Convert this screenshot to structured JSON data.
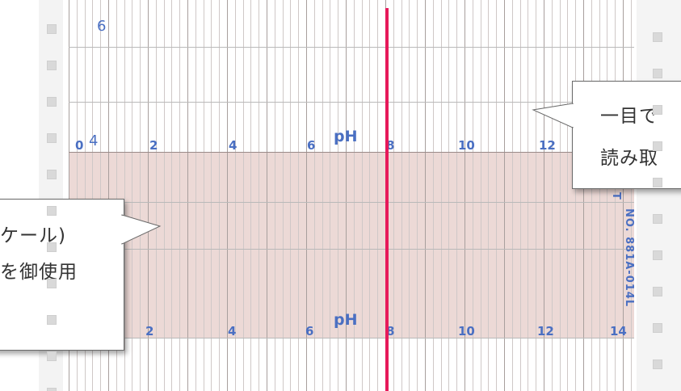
{
  "chart_paper": {
    "upper_scale": {
      "lead_digit": "0",
      "labels": [
        "4",
        "2",
        "4",
        "6",
        "8",
        "10",
        "12"
      ],
      "unit": "pH"
    },
    "lower_scale": {
      "labels": [
        "2",
        "4",
        "6",
        "8",
        "10",
        "12",
        "14"
      ],
      "unit": "pH"
    },
    "top_digit": "6",
    "part_number": "NO. 881A-014L",
    "part_prefix": "T",
    "colors": {
      "paper": "#ffffff",
      "shaded_band": "#ecd9d6",
      "grid_line": "#b9b9b9",
      "scale_text": "#4a6fc2",
      "trace": "#e6195a"
    }
  },
  "callouts": {
    "right": {
      "line1": "一目で",
      "line2": "読み取"
    },
    "left": {
      "line1": "ケール)",
      "line2": "を御使用"
    }
  }
}
